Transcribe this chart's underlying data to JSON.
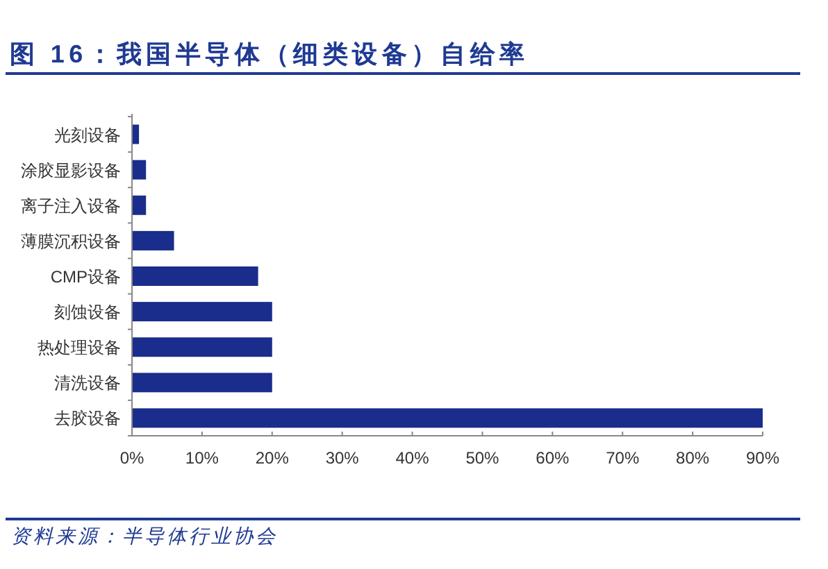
{
  "chart_data": {
    "type": "bar",
    "orientation": "horizontal",
    "title": "图 16：我国半导体（细类设备）自给率",
    "categories": [
      "光刻设备",
      "涂胶显影设备",
      "离子注入设备",
      "薄膜沉积设备",
      "CMP设备",
      "刻蚀设备",
      "热处理设备",
      "清洗设备",
      "去胶设备"
    ],
    "values": [
      1,
      2,
      2,
      6,
      18,
      20,
      20,
      20,
      90
    ],
    "color": "#1a2d8c",
    "xlim": [
      0,
      90
    ],
    "xticks": [
      {
        "value": 0,
        "label": "0%"
      },
      {
        "value": 10,
        "label": "10%"
      },
      {
        "value": 20,
        "label": "20%"
      },
      {
        "value": 30,
        "label": "30%"
      },
      {
        "value": 40,
        "label": "40%"
      },
      {
        "value": 50,
        "label": "50%"
      },
      {
        "value": 60,
        "label": "60%"
      },
      {
        "value": 70,
        "label": "70%"
      },
      {
        "value": 80,
        "label": "80%"
      },
      {
        "value": 90,
        "label": "90%"
      }
    ],
    "annotations": [
      "资料来源：半导体行业协会"
    ]
  }
}
